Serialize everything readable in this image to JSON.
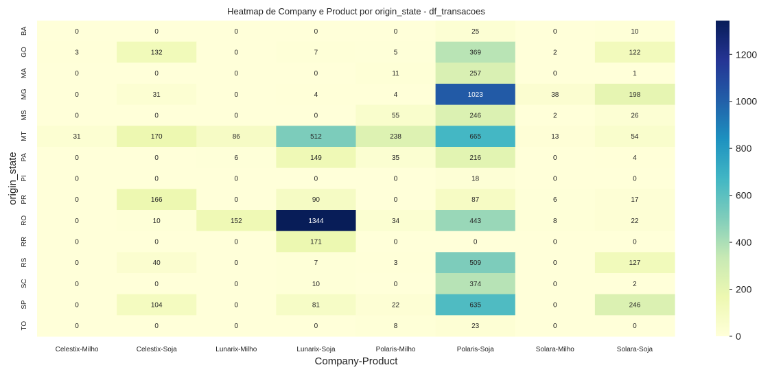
{
  "chart_data": {
    "type": "heatmap",
    "title": "Heatmap de Company e Product por origin_state - df_transacoes",
    "xlabel": "Company-Product",
    "ylabel": "origin_state",
    "x_categories": [
      "Celestix-Milho",
      "Celestix-Soja",
      "Lunarix-Milho",
      "Lunarix-Soja",
      "Polaris-Milho",
      "Polaris-Soja",
      "Solara-Milho",
      "Solara-Soja"
    ],
    "y_categories": [
      "BA",
      "GO",
      "MA",
      "MG",
      "MS",
      "MT",
      "PA",
      "PI",
      "PR",
      "RO",
      "RR",
      "RS",
      "SC",
      "SP",
      "TO"
    ],
    "values": [
      [
        0,
        0,
        0,
        0,
        0,
        25,
        0,
        10
      ],
      [
        3,
        132,
        0,
        7,
        5,
        369,
        2,
        122
      ],
      [
        0,
        0,
        0,
        0,
        11,
        257,
        0,
        1
      ],
      [
        0,
        31,
        0,
        4,
        4,
        1023,
        38,
        198
      ],
      [
        0,
        0,
        0,
        0,
        55,
        246,
        2,
        26
      ],
      [
        31,
        170,
        86,
        512,
        238,
        665,
        13,
        54
      ],
      [
        0,
        0,
        6,
        149,
        35,
        216,
        0,
        4
      ],
      [
        0,
        0,
        0,
        0,
        0,
        18,
        0,
        0
      ],
      [
        0,
        166,
        0,
        90,
        0,
        87,
        6,
        17
      ],
      [
        0,
        10,
        152,
        1344,
        34,
        443,
        8,
        22
      ],
      [
        0,
        0,
        0,
        171,
        0,
        0,
        0,
        0
      ],
      [
        0,
        40,
        0,
        7,
        3,
        509,
        0,
        127
      ],
      [
        0,
        0,
        0,
        10,
        0,
        374,
        0,
        2
      ],
      [
        0,
        104,
        0,
        81,
        22,
        635,
        0,
        246
      ],
      [
        0,
        0,
        0,
        0,
        8,
        23,
        0,
        0
      ]
    ],
    "colormap": "YlGnBu",
    "vmin": 0,
    "vmax": 1344,
    "colorbar_ticks": [
      0,
      200,
      400,
      600,
      800,
      1000,
      1200
    ],
    "annotations": true,
    "grid": false
  }
}
